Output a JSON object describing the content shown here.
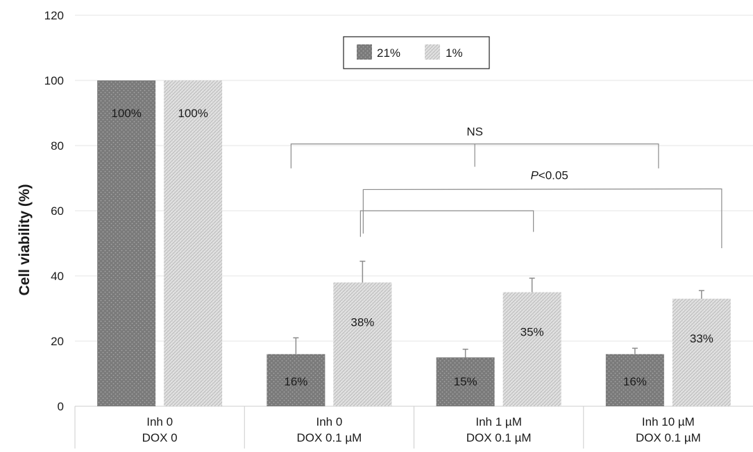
{
  "chart_data": {
    "type": "bar",
    "ylabel": "Cell viability (%)",
    "ylim": [
      0,
      120
    ],
    "yticks": [
      0,
      20,
      40,
      60,
      80,
      100,
      120
    ],
    "grid": true,
    "legend_position": "top-center",
    "categories": [
      [
        "Inh 0",
        "DOX 0"
      ],
      [
        "Inh 0",
        "DOX 0.1 µM"
      ],
      [
        "Inh 1 µM",
        "DOX 0.1 µM"
      ],
      [
        "Inh 10 µM",
        "DOX 0.1 µM"
      ]
    ],
    "series": [
      {
        "name": "21%",
        "color": "#7a7a7a",
        "values": [
          100,
          16,
          15,
          16
        ],
        "errors": [
          null,
          5,
          2.5,
          1.8
        ],
        "labels": [
          "100%",
          "16%",
          "15%",
          "16%"
        ]
      },
      {
        "name": "1%",
        "color": "#d4d4d4",
        "values": [
          100,
          38,
          35,
          33
        ],
        "errors": [
          null,
          6.5,
          4.3,
          2.5
        ],
        "labels": [
          "100%",
          "38%",
          "35%",
          "33%"
        ]
      }
    ],
    "annotations": {
      "ns_label": "NS",
      "p_label_italic": "P",
      "p_label_rest": "<0.05"
    }
  }
}
